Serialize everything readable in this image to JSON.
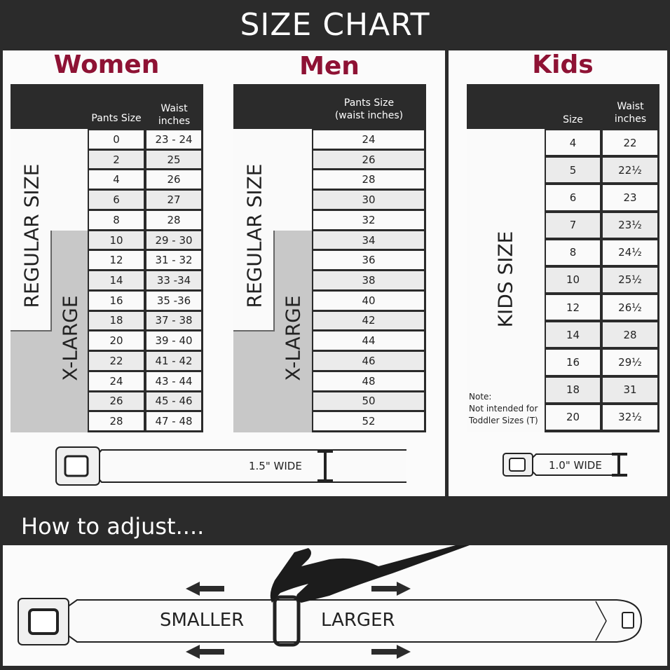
{
  "header": {
    "title": "SIZE CHART"
  },
  "women": {
    "title": "Women",
    "col_size": "Pants Size",
    "col_waist_1": "Waist",
    "col_waist_2": "inches",
    "label_regular": "REGULAR SIZE",
    "label_xlarge": "X-LARGE",
    "rows": [
      [
        "0",
        "23 - 24"
      ],
      [
        "2",
        "25"
      ],
      [
        "4",
        "26"
      ],
      [
        "6",
        "27"
      ],
      [
        "8",
        "28"
      ],
      [
        "10",
        "29 - 30"
      ],
      [
        "12",
        "31 - 32"
      ],
      [
        "14",
        "33 -34"
      ],
      [
        "16",
        "35 -36"
      ],
      [
        "18",
        "37 - 38"
      ],
      [
        "20",
        "39 - 40"
      ],
      [
        "22",
        "41 - 42"
      ],
      [
        "24",
        "43 - 44"
      ],
      [
        "26",
        "45 - 46"
      ],
      [
        "28",
        "47 - 48"
      ]
    ]
  },
  "men": {
    "title": "Men",
    "col_1": "Pants Size",
    "col_2": "(waist inches)",
    "label_regular": "REGULAR SIZE",
    "label_xlarge": "X-LARGE",
    "rows": [
      "24",
      "26",
      "28",
      "30",
      "32",
      "34",
      "36",
      "38",
      "40",
      "42",
      "44",
      "46",
      "48",
      "50",
      "52"
    ]
  },
  "kids": {
    "title": "Kids",
    "col_size": "Size",
    "col_waist_1": "Waist",
    "col_waist_2": "inches",
    "label": "KIDS SIZE",
    "note_1": "Note:",
    "note_2": "Not intended for",
    "note_3": "Toddler Sizes (T)",
    "rows": [
      [
        "4",
        "22"
      ],
      [
        "5",
        "22½"
      ],
      [
        "6",
        "23"
      ],
      [
        "7",
        "23½"
      ],
      [
        "8",
        "24½"
      ],
      [
        "10",
        "25½"
      ],
      [
        "12",
        "26½"
      ],
      [
        "14",
        "28"
      ],
      [
        "16",
        "29½"
      ],
      [
        "18",
        "31"
      ],
      [
        "20",
        "32½"
      ]
    ]
  },
  "belts": {
    "adult_width": "1.5\" WIDE",
    "kids_width": "1.0\" WIDE"
  },
  "adjust": {
    "title": "How to adjust....",
    "smaller": "SMALLER",
    "larger": "LARGER"
  }
}
